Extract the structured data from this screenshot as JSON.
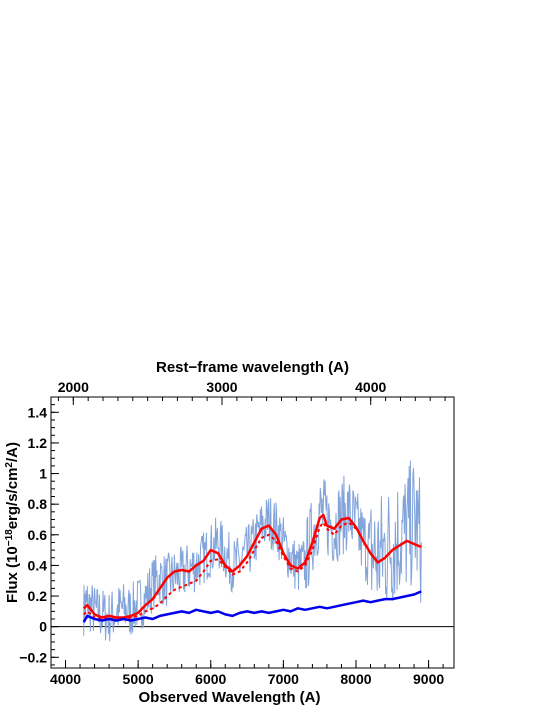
{
  "chart_data": {
    "type": "line",
    "title": "",
    "xlabel": "Observed Wavelength (A)",
    "ylabel": "Flux (10",
    "ylabel_exp": "−18",
    "ylabel_mid": "erg/s/cm",
    "ylabel_exp2": "2",
    "ylabel_end": "/A)",
    "x2label": "Rest−frame wavelength (A)",
    "xlim": [
      3800,
      9350
    ],
    "ylim": [
      -0.27,
      1.5
    ],
    "x_ticks": [
      4000,
      5000,
      6000,
      7000,
      8000,
      9000
    ],
    "x_tick_labels": [
      "4000",
      "5000",
      "6000",
      "7000",
      "8000",
      "9000"
    ],
    "y_ticks": [
      -0.2,
      0,
      0.2,
      0.4,
      0.6,
      0.8,
      1,
      1.2,
      1.4
    ],
    "y_tick_labels": [
      "−0.2",
      "0",
      "0.2",
      "0.4",
      "0.6",
      "0.8",
      "1",
      "1.2",
      "1.4"
    ],
    "x2_ticks": [
      2000,
      3000,
      4000
    ],
    "x2_tick_labels": [
      "2000",
      "3000",
      "4000"
    ],
    "x2_range": [
      1850,
      4560
    ],
    "zero_line": 0,
    "grid": false,
    "series": [
      {
        "color": "#7b9fd8",
        "style": "noisy",
        "x": [
          4250,
          4300,
          4400,
          4500,
          4600,
          4700,
          4800,
          4900,
          5000,
          5100,
          5200,
          5300,
          5400,
          5500,
          5600,
          5700,
          5800,
          5900,
          6000,
          6100,
          6200,
          6300,
          6400,
          6500,
          6600,
          6700,
          6800,
          6900,
          7000,
          7100,
          7200,
          7300,
          7400,
          7500,
          7600,
          7700,
          7800,
          7900,
          8000,
          8100,
          8200,
          8300,
          8400,
          8500,
          8600,
          8700,
          8800,
          8900
        ],
        "values": [
          0.12,
          0.15,
          0.1,
          0.08,
          0.06,
          0.1,
          0.12,
          0.1,
          0.15,
          0.18,
          0.28,
          0.32,
          0.3,
          0.33,
          0.34,
          0.38,
          0.4,
          0.45,
          0.5,
          0.55,
          0.48,
          0.4,
          0.42,
          0.48,
          0.55,
          0.65,
          0.7,
          0.65,
          0.55,
          0.45,
          0.38,
          0.42,
          0.6,
          0.75,
          0.7,
          0.65,
          0.72,
          0.75,
          0.65,
          0.55,
          0.5,
          0.45,
          0.5,
          0.55,
          0.6,
          0.62,
          0.7,
          0.55
        ]
      },
      {
        "color": "#ff0000",
        "style": "solid",
        "x": [
          4250,
          4300,
          4400,
          4500,
          4600,
          4700,
          4800,
          4900,
          5000,
          5100,
          5200,
          5300,
          5400,
          5500,
          5600,
          5700,
          5800,
          5900,
          6000,
          6100,
          6200,
          6300,
          6400,
          6500,
          6600,
          6700,
          6800,
          6900,
          7000,
          7100,
          7200,
          7300,
          7400,
          7500,
          7550,
          7600,
          7700,
          7800,
          7900,
          8000,
          8100,
          8200,
          8250,
          8300,
          8400,
          8500,
          8600,
          8700,
          8800,
          8900
        ],
        "values": [
          0.12,
          0.14,
          0.08,
          0.06,
          0.07,
          0.06,
          0.06,
          0.07,
          0.09,
          0.14,
          0.18,
          0.25,
          0.32,
          0.36,
          0.37,
          0.36,
          0.4,
          0.43,
          0.5,
          0.48,
          0.4,
          0.36,
          0.4,
          0.46,
          0.55,
          0.64,
          0.66,
          0.6,
          0.48,
          0.4,
          0.38,
          0.42,
          0.55,
          0.71,
          0.73,
          0.66,
          0.64,
          0.7,
          0.71,
          0.65,
          0.56,
          0.48,
          0.45,
          0.42,
          0.45,
          0.5,
          0.53,
          0.56,
          0.54,
          0.52
        ]
      },
      {
        "color": "#ff0000",
        "style": "dotted",
        "x": [
          4250,
          4300,
          4400,
          4500,
          4600,
          4700,
          4800,
          4900,
          5000,
          5100,
          5200,
          5300,
          5400,
          5500,
          5600,
          5700,
          5800,
          5900,
          6000,
          6100,
          6200,
          6300,
          6400,
          6500,
          6600,
          6700,
          6800,
          6900,
          7000,
          7100,
          7200,
          7300,
          7400,
          7500,
          7550,
          7600,
          7700,
          7800,
          7900,
          8000
        ],
        "values": [
          0.08,
          0.1,
          0.06,
          0.05,
          0.05,
          0.05,
          0.05,
          0.06,
          0.07,
          0.1,
          0.12,
          0.15,
          0.2,
          0.24,
          0.26,
          0.28,
          0.3,
          0.36,
          0.43,
          0.44,
          0.39,
          0.34,
          0.36,
          0.42,
          0.5,
          0.58,
          0.6,
          0.56,
          0.46,
          0.38,
          0.36,
          0.4,
          0.5,
          0.65,
          0.68,
          0.64,
          0.6,
          0.66,
          0.68,
          0.64
        ]
      },
      {
        "color": "#0000ee",
        "style": "solid",
        "x": [
          4250,
          4300,
          4400,
          4500,
          4600,
          4700,
          4800,
          4900,
          5000,
          5100,
          5200,
          5300,
          5400,
          5500,
          5600,
          5700,
          5800,
          5900,
          6000,
          6100,
          6200,
          6300,
          6400,
          6500,
          6600,
          6700,
          6800,
          6900,
          7000,
          7100,
          7200,
          7300,
          7400,
          7500,
          7600,
          7700,
          7800,
          7900,
          8000,
          8100,
          8200,
          8300,
          8400,
          8500,
          8600,
          8700,
          8800,
          8900
        ],
        "values": [
          0.03,
          0.07,
          0.05,
          0.04,
          0.05,
          0.04,
          0.05,
          0.04,
          0.05,
          0.06,
          0.05,
          0.07,
          0.08,
          0.09,
          0.1,
          0.09,
          0.11,
          0.1,
          0.09,
          0.1,
          0.08,
          0.07,
          0.09,
          0.1,
          0.09,
          0.1,
          0.09,
          0.1,
          0.11,
          0.1,
          0.12,
          0.11,
          0.12,
          0.13,
          0.12,
          0.13,
          0.14,
          0.15,
          0.16,
          0.17,
          0.16,
          0.17,
          0.18,
          0.18,
          0.19,
          0.2,
          0.21,
          0.23
        ]
      }
    ]
  }
}
